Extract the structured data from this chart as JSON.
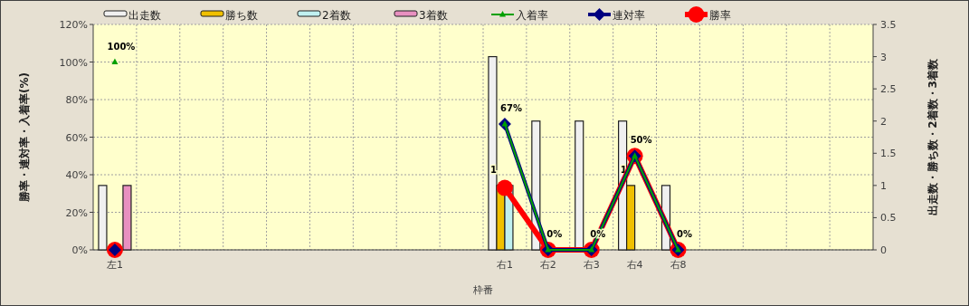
{
  "chart_data": {
    "type": "bar",
    "xlabel": "枠番",
    "ylabel": "勝率・連対率・入着率(%)",
    "y2label": "出走数・勝ち数・2着数・3着数",
    "categories": [
      "左1",
      null,
      null,
      null,
      null,
      null,
      null,
      null,
      null,
      "右1",
      "右2",
      "右3",
      "右4",
      "右8",
      null,
      null,
      null,
      null
    ],
    "ylim": [
      0,
      120
    ],
    "yticks": [
      {
        "value": 0,
        "label": "0%"
      },
      {
        "value": 20,
        "label": "20%"
      },
      {
        "value": 40,
        "label": "40%"
      },
      {
        "value": 60,
        "label": "60%"
      },
      {
        "value": 80,
        "label": "80%"
      },
      {
        "value": 100,
        "label": "100%"
      },
      {
        "value": 120,
        "label": "120%"
      }
    ],
    "y2lim": [
      0,
      3.5
    ],
    "y2ticks": [
      0,
      0.5,
      1,
      1.5,
      2,
      2.5,
      3,
      3.5
    ],
    "grid": true,
    "legend": "top",
    "series": [
      {
        "name": "出走数",
        "axis": "y2",
        "color": "#f0f0f0",
        "values": [
          1,
          null,
          null,
          null,
          null,
          null,
          null,
          null,
          null,
          3,
          2,
          2,
          2,
          1,
          null,
          null,
          null,
          null
        ]
      },
      {
        "name": "勝ち数",
        "axis": "y2",
        "color": "#f0c000",
        "values": [
          0,
          null,
          null,
          null,
          null,
          null,
          null,
          null,
          null,
          1,
          0,
          0,
          1,
          0,
          null,
          null,
          null,
          null
        ],
        "value_labels": [
          null,
          null,
          null,
          null,
          null,
          null,
          null,
          null,
          null,
          "1",
          null,
          null,
          "1",
          null,
          null,
          null,
          null,
          null
        ]
      },
      {
        "name": "2着数",
        "axis": "y2",
        "color": "#c0f0f0",
        "values": [
          0,
          null,
          null,
          null,
          null,
          null,
          null,
          null,
          null,
          1,
          0,
          0,
          0,
          0,
          null,
          null,
          null,
          null
        ]
      },
      {
        "name": "3着数",
        "axis": "y2",
        "color": "#e890c0",
        "values": [
          1,
          null,
          null,
          null,
          null,
          null,
          null,
          null,
          null,
          0,
          0,
          0,
          0,
          0,
          null,
          null,
          null,
          null
        ]
      },
      {
        "name": "入着率",
        "type": "line",
        "color": "#00a000",
        "marker": "triangle",
        "values": [
          100,
          null,
          null,
          null,
          null,
          null,
          null,
          null,
          null,
          67,
          0,
          0,
          50,
          0,
          null,
          null,
          null,
          null
        ],
        "value_labels": [
          "100%",
          null,
          null,
          null,
          null,
          null,
          null,
          null,
          null,
          null,
          "0%",
          "0%",
          null,
          null,
          null,
          null,
          null,
          null
        ]
      },
      {
        "name": "連対率",
        "type": "line",
        "color": "#000080",
        "marker": "diamond",
        "values": [
          0,
          null,
          null,
          null,
          null,
          null,
          null,
          null,
          null,
          67,
          0,
          0,
          50,
          0,
          null,
          null,
          null,
          null
        ],
        "value_labels": [
          null,
          null,
          null,
          null,
          null,
          null,
          null,
          null,
          null,
          "67%",
          null,
          null,
          null,
          null,
          null,
          null,
          null,
          null
        ]
      },
      {
        "name": "勝率",
        "type": "line",
        "color": "#ff0000",
        "marker": "circle",
        "values": [
          0,
          null,
          null,
          null,
          null,
          null,
          null,
          null,
          null,
          33,
          0,
          0,
          50,
          0,
          null,
          null,
          null,
          null
        ],
        "value_labels": [
          null,
          null,
          null,
          null,
          null,
          null,
          null,
          null,
          null,
          null,
          null,
          null,
          "50%",
          "0%",
          null,
          null,
          null,
          null
        ]
      }
    ]
  }
}
